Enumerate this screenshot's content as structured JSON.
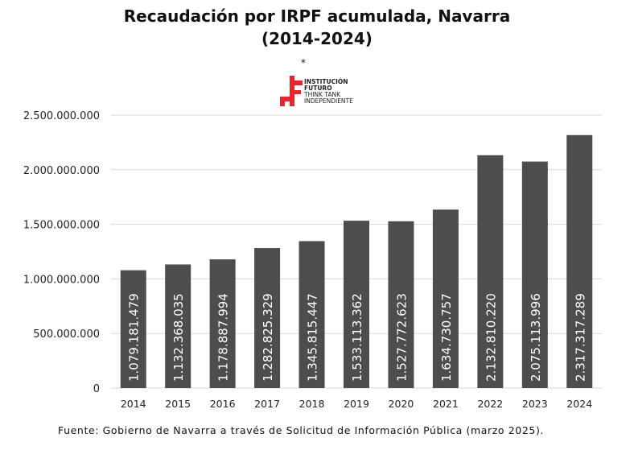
{
  "title": {
    "line1": "Recaudación por IRPF acumulada, Navarra",
    "line2": "(2014-2024)"
  },
  "logo": {
    "star": "*",
    "line1": "INSTITUCIÓN",
    "line2": "FUTURO",
    "line3": "THINK TANK",
    "line4": "INDEPENDIENTE"
  },
  "colors": {
    "bar": "#4d4d4d",
    "grid": "#d9d9d9",
    "axis_text": "#222222",
    "label_text": "#ffffff",
    "logo_red": "#e4262d"
  },
  "chart_data": {
    "type": "bar",
    "title": "Recaudación por IRPF acumulada, Navarra (2014-2024)",
    "categories": [
      "2014",
      "2015",
      "2016",
      "2017",
      "2018",
      "2019",
      "2020",
      "2021",
      "2022",
      "2023",
      "2024"
    ],
    "values": [
      1079181479,
      1132368035,
      1178887994,
      1282825329,
      1345815447,
      1533113362,
      1527772623,
      1634730757,
      2132810220,
      2075113996,
      2317317289
    ],
    "data_labels": [
      "1.079.181.479",
      "1.132.368.035",
      "1.178.887.994",
      "1.282.825.329",
      "1.345.815.447",
      "1.533.113.362",
      "1.527.772.623",
      "1.634.730.757",
      "2.132.810.220",
      "2.075.113.996",
      "2.317.317.289"
    ],
    "y_ticks": [
      0,
      500000000,
      1000000000,
      1500000000,
      2000000000,
      2500000000
    ],
    "y_tick_labels": [
      "0",
      "500.000.000",
      "1.000.000.000",
      "1.500.000.000",
      "2.000.000.000",
      "2.500.000.000"
    ],
    "ylim": [
      0,
      2500000000
    ],
    "xlabel": "",
    "ylabel": "",
    "grid": true,
    "legend": "none"
  },
  "source": "Fuente: Gobierno de Navarra a través de Solicitud de Información Pública (marzo 2025)."
}
